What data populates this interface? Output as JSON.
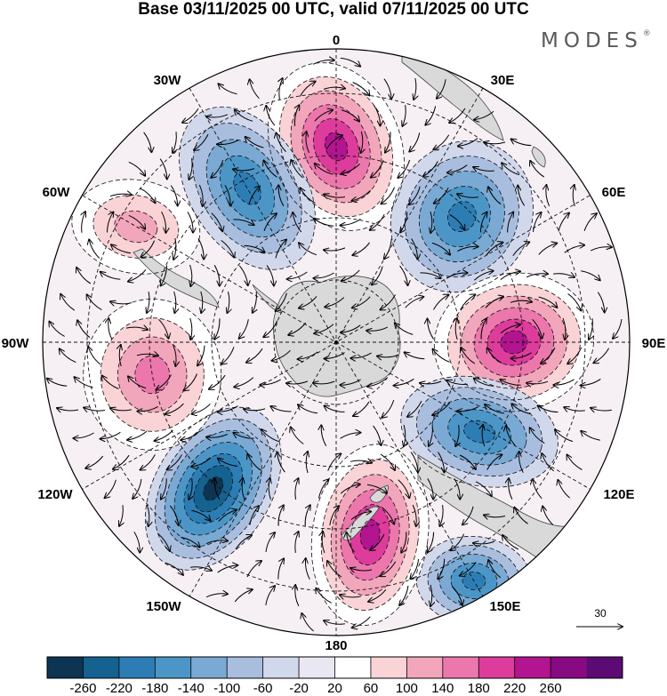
{
  "title": "Base 03/11/2025 00 UTC, valid 07/11/2025 00 UTC",
  "brand": {
    "name": "MODES",
    "mark": "®"
  },
  "map": {
    "projection": "south-polar-stereographic",
    "longitude_labels": [
      "0",
      "30E",
      "60E",
      "90E",
      "120E",
      "150E",
      "180",
      "150W",
      "120W",
      "90W",
      "60W",
      "30W"
    ],
    "vector_reference": {
      "label": "30"
    }
  },
  "colorbar": {
    "ticks": [
      "-260",
      "-220",
      "-180",
      "-140",
      "-100",
      "-60",
      "-20",
      "20",
      "60",
      "100",
      "140",
      "180",
      "220",
      "260"
    ],
    "colors": [
      "#0d3553",
      "#15618f",
      "#2d7db5",
      "#4c96c7",
      "#7aa9d3",
      "#a9bedf",
      "#d2d8ec",
      "#e9e7f2",
      "#ffffff",
      "#f9d3d6",
      "#f2a6bb",
      "#ec77ad",
      "#dd3c9c",
      "#b3148f",
      "#870a82",
      "#5c0a74"
    ]
  },
  "anomalies": [
    {
      "name": "anomaly-positive-0",
      "value": 220
    },
    {
      "name": "anomaly-negative-30w",
      "value": -180
    },
    {
      "name": "anomaly-negative-45e",
      "value": -180
    },
    {
      "name": "anomaly-positive-90e",
      "value": 220
    },
    {
      "name": "anomaly-negative-120e",
      "value": -180
    },
    {
      "name": "anomaly-negative-150e",
      "value": -180
    },
    {
      "name": "anomaly-positive-170w",
      "value": 220
    },
    {
      "name": "anomaly-negative-140w",
      "value": -260
    },
    {
      "name": "anomaly-positive-100w",
      "value": 140
    },
    {
      "name": "anomaly-positive-60w",
      "value": 100
    }
  ]
}
